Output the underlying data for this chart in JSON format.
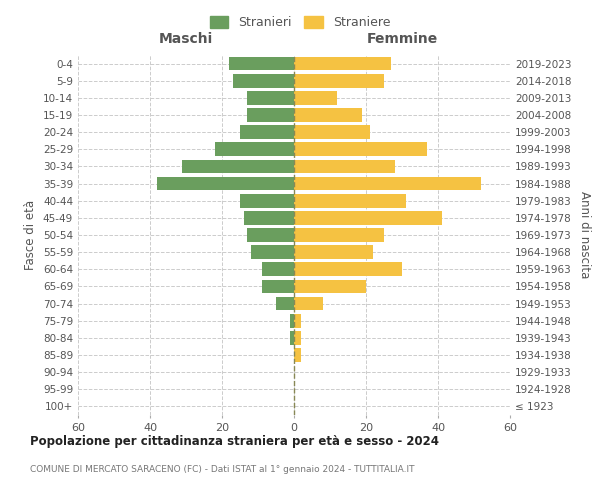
{
  "age_groups": [
    "100+",
    "95-99",
    "90-94",
    "85-89",
    "80-84",
    "75-79",
    "70-74",
    "65-69",
    "60-64",
    "55-59",
    "50-54",
    "45-49",
    "40-44",
    "35-39",
    "30-34",
    "25-29",
    "20-24",
    "15-19",
    "10-14",
    "5-9",
    "0-4"
  ],
  "birth_years": [
    "≤ 1923",
    "1924-1928",
    "1929-1933",
    "1934-1938",
    "1939-1943",
    "1944-1948",
    "1949-1953",
    "1954-1958",
    "1959-1963",
    "1964-1968",
    "1969-1973",
    "1974-1978",
    "1979-1983",
    "1984-1988",
    "1989-1993",
    "1994-1998",
    "1999-2003",
    "2004-2008",
    "2009-2013",
    "2014-2018",
    "2019-2023"
  ],
  "males": [
    0,
    0,
    0,
    0,
    1,
    1,
    5,
    9,
    9,
    12,
    13,
    14,
    15,
    38,
    31,
    22,
    15,
    13,
    13,
    17,
    18
  ],
  "females": [
    0,
    0,
    0,
    2,
    2,
    2,
    8,
    20,
    30,
    22,
    25,
    41,
    31,
    52,
    28,
    37,
    21,
    19,
    12,
    25,
    27
  ],
  "male_color": "#6a9e5e",
  "female_color": "#f5c242",
  "background_color": "#ffffff",
  "grid_color": "#cccccc",
  "center_line_color": "#888855",
  "title": "Popolazione per cittadinanza straniera per età e sesso - 2024",
  "subtitle": "COMUNE DI MERCATO SARACENO (FC) - Dati ISTAT al 1° gennaio 2024 - TUTTITALIA.IT",
  "xlabel_left": "Maschi",
  "xlabel_right": "Femmine",
  "ylabel_left": "Fasce di età",
  "ylabel_right": "Anni di nascita",
  "legend_male": "Stranieri",
  "legend_female": "Straniere",
  "xlim": 60,
  "bar_height": 0.8
}
